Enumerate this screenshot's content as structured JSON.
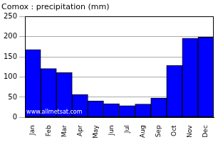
{
  "chart_data": {
    "type": "bar",
    "title": "Comox : precipitation (mm)",
    "annotation": "www.allmetsat.com",
    "categories": [
      "Jan",
      "Feb",
      "Mar",
      "Apr",
      "May",
      "Jun",
      "Jul",
      "Aug",
      "Sep",
      "Oct",
      "Nov",
      "Dec"
    ],
    "values": [
      168,
      121,
      111,
      57,
      41,
      34,
      29,
      33,
      48,
      129,
      196,
      199
    ],
    "color": "#0000ff",
    "ylim": [
      0,
      250
    ],
    "yticks": [
      0,
      50,
      100,
      150,
      200,
      250
    ],
    "grid": true
  }
}
